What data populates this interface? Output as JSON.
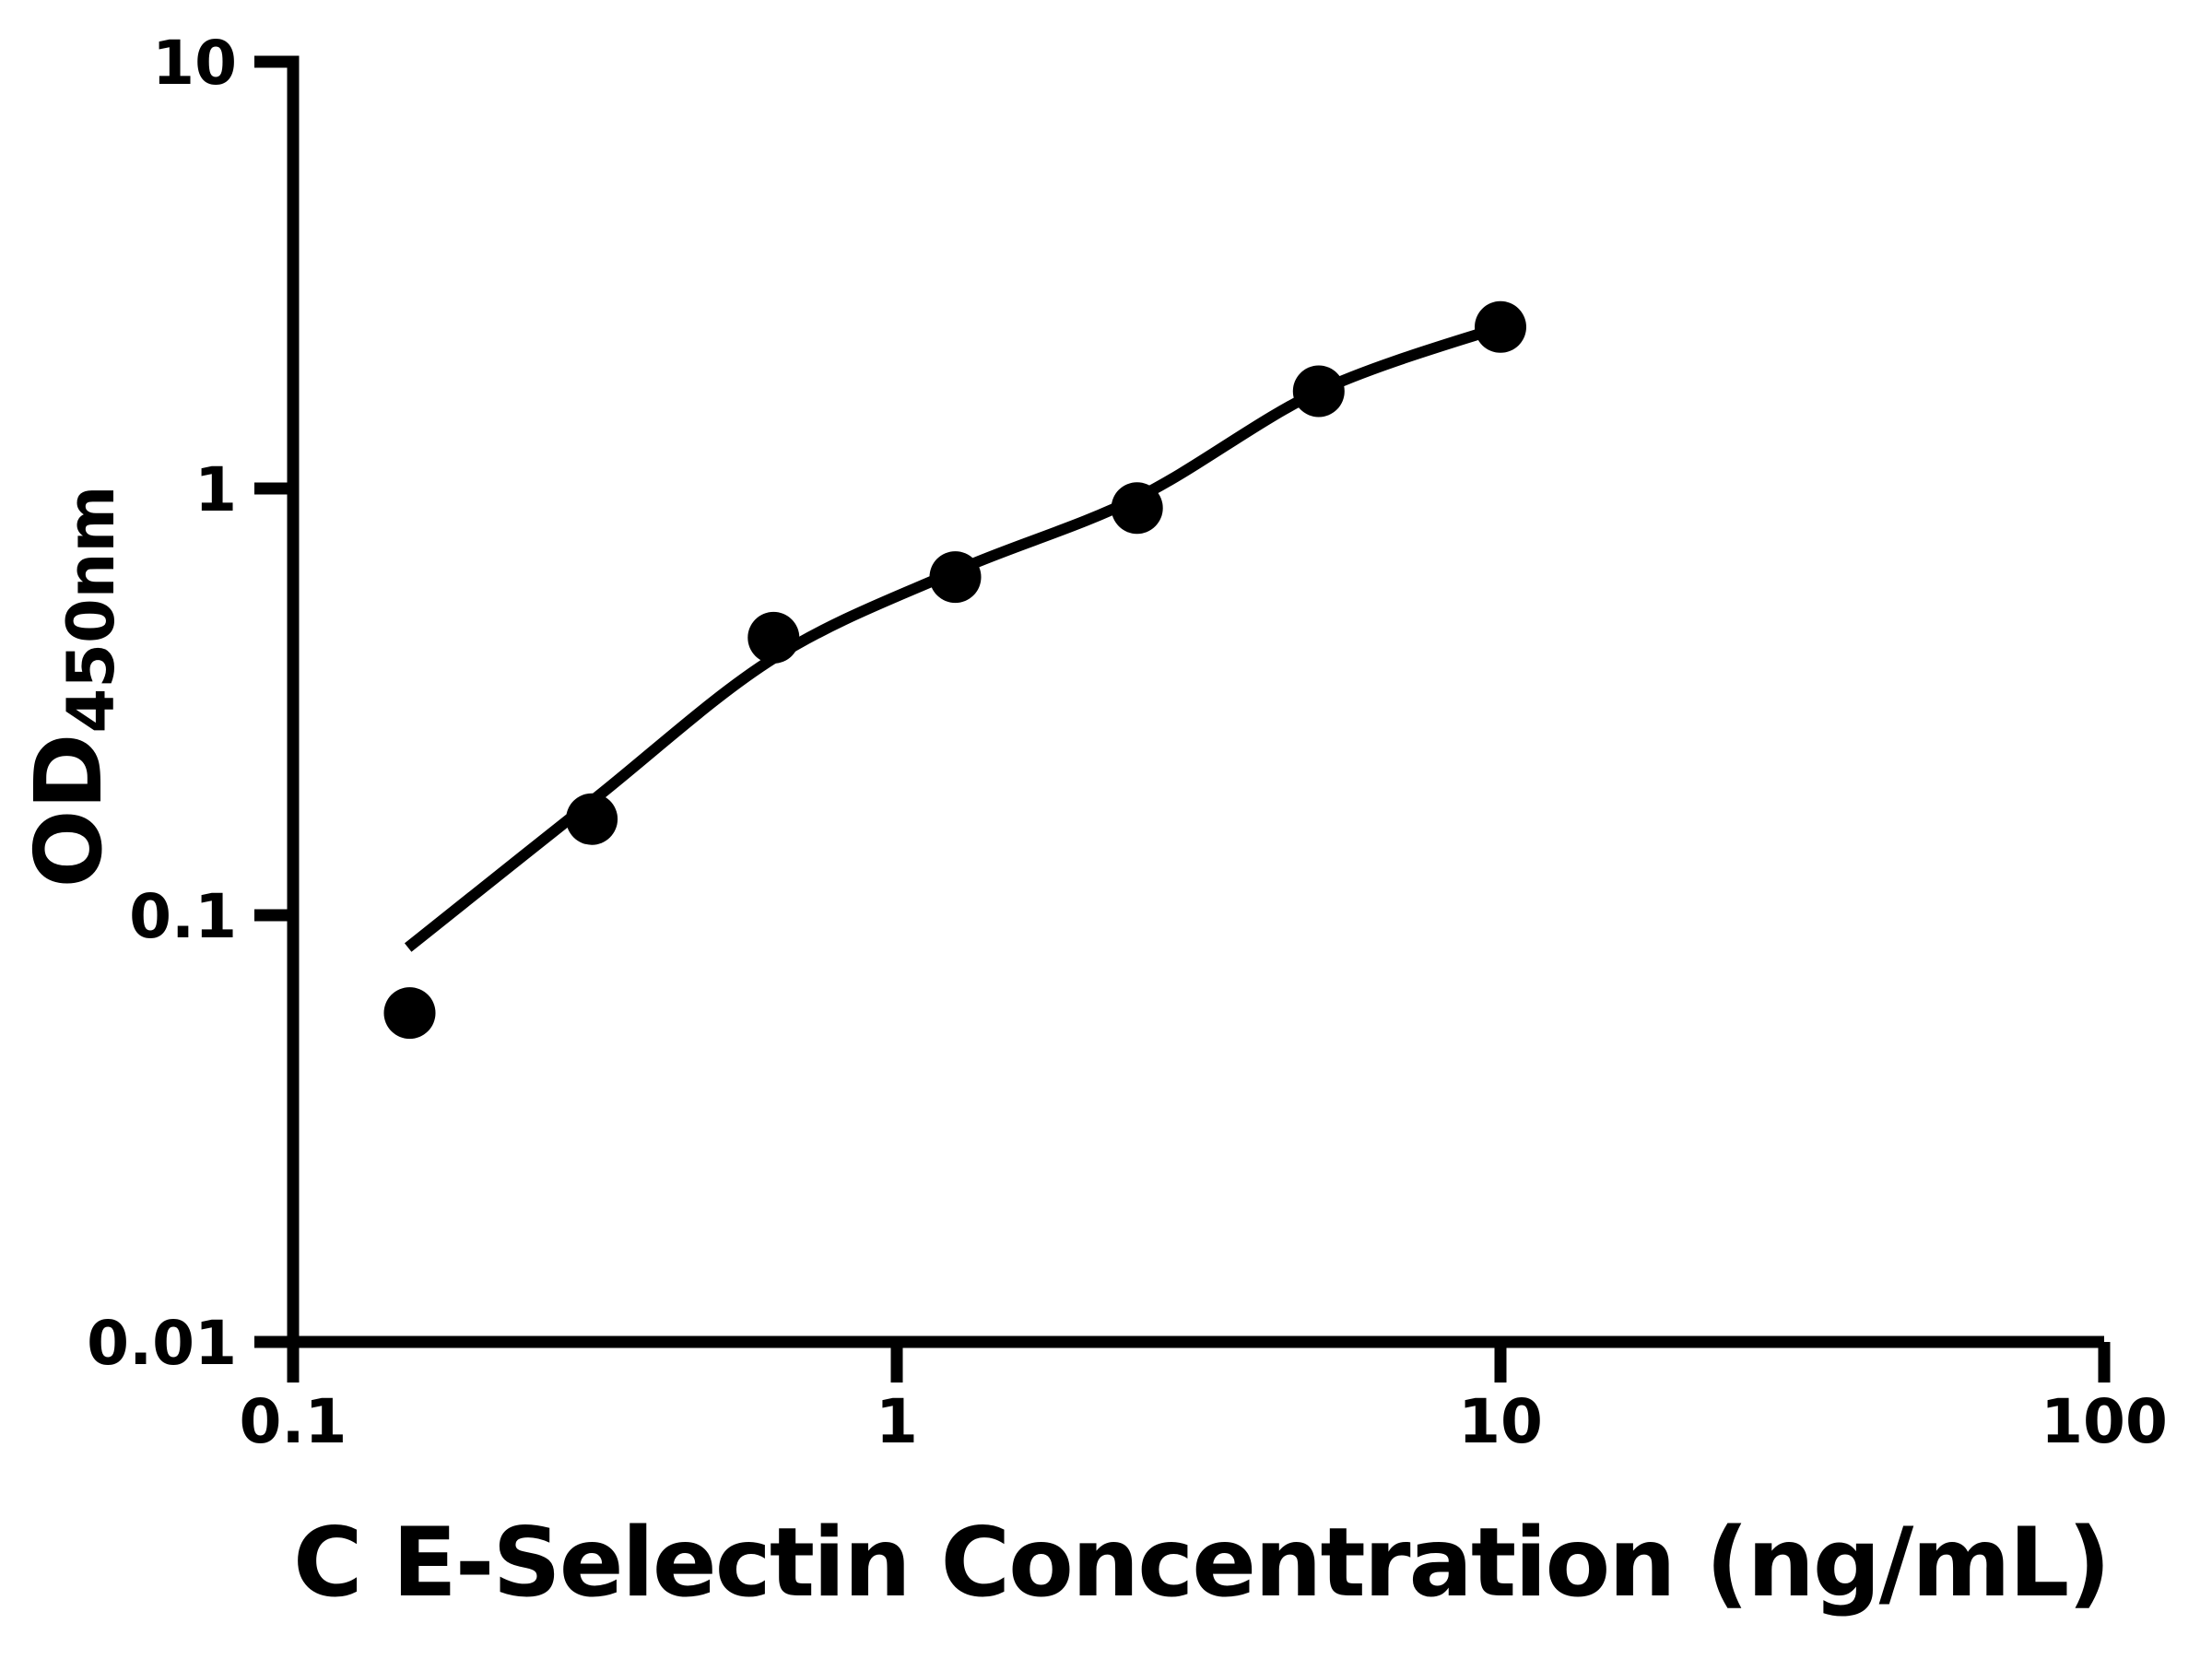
{
  "figure": {
    "background_color": "#ffffff",
    "ink_color": "#000000"
  },
  "chart_data": {
    "type": "scatter",
    "title": "",
    "xlabel": "C E-Selectin Concentration (ng/mL)",
    "ylabel": "OD",
    "ylabel_subscript": "450nm",
    "x_scale": "log",
    "y_scale": "log",
    "xlim": [
      0.1,
      100
    ],
    "ylim": [
      0.01,
      10
    ],
    "x_tick_labels": [
      "0.1",
      "1",
      "10",
      "100"
    ],
    "y_tick_labels": [
      "10",
      "1",
      "0.1",
      "0.01"
    ],
    "grid": false,
    "legend": false,
    "marker_color": "#000000",
    "line_color": "#000000",
    "series": [
      {
        "name": "standard-points",
        "style": "filled-circle",
        "points": [
          {
            "x": 0.156,
            "y": 0.059
          },
          {
            "x": 0.3125,
            "y": 0.168
          },
          {
            "x": 0.625,
            "y": 0.447
          },
          {
            "x": 1.25,
            "y": 0.62
          },
          {
            "x": 2.5,
            "y": 0.9
          },
          {
            "x": 5,
            "y": 1.69
          },
          {
            "x": 10,
            "y": 2.39
          }
        ]
      },
      {
        "name": "fit-curve",
        "style": "smooth-line",
        "points": [
          {
            "x": 0.155,
            "y": 0.084
          },
          {
            "x": 0.3125,
            "y": 0.185
          },
          {
            "x": 0.625,
            "y": 0.4
          },
          {
            "x": 1.25,
            "y": 0.64
          },
          {
            "x": 2.5,
            "y": 0.95
          },
          {
            "x": 5,
            "y": 1.69
          },
          {
            "x": 10,
            "y": 2.39
          }
        ]
      }
    ]
  }
}
